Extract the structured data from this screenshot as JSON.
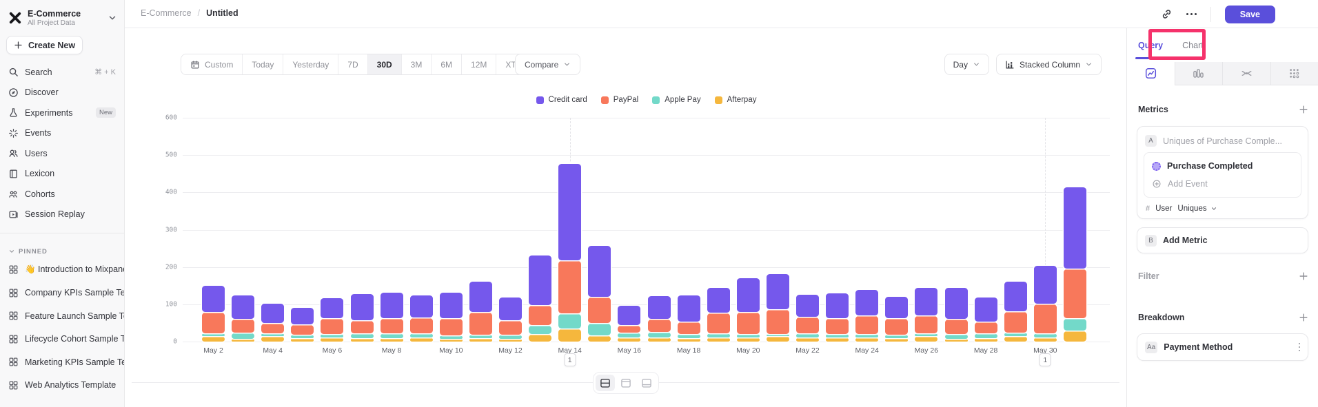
{
  "colors": {
    "accent": "#5a4fdb",
    "highlight_pink": "#f5326b"
  },
  "sidebar": {
    "project": {
      "name": "E-Commerce",
      "subtitle": "All Project Data"
    },
    "create_new_label": "Create New",
    "nav": [
      {
        "icon": "search",
        "label": "Search",
        "shortcut": "⌘ + K"
      },
      {
        "icon": "discover",
        "label": "Discover"
      },
      {
        "icon": "experiments",
        "label": "Experiments",
        "badge": "New"
      },
      {
        "icon": "events",
        "label": "Events"
      },
      {
        "icon": "users",
        "label": "Users"
      },
      {
        "icon": "lexicon",
        "label": "Lexicon"
      },
      {
        "icon": "cohorts",
        "label": "Cohorts"
      },
      {
        "icon": "session-replay",
        "label": "Session Replay"
      }
    ],
    "pinned_header": "PINNED",
    "pinned": [
      "👋 Introduction to Mixpanel Bo",
      "Company KPIs Sample Templat",
      "Feature Launch Sample Templa",
      "Lifecycle Cohort Sample Temp",
      "Marketing KPIs Sample Templat",
      "Web Analytics Template"
    ]
  },
  "header": {
    "breadcrumb": [
      "E-Commerce",
      "Untitled"
    ],
    "separator": "/",
    "save_label": "Save"
  },
  "toolbar": {
    "ranges": [
      "Custom",
      "Today",
      "Yesterday",
      "7D",
      "30D",
      "3M",
      "6M",
      "12M",
      "XTD"
    ],
    "active_range": "30D",
    "compare_label": "Compare",
    "granularity_label": "Day",
    "chart_type_label": "Stacked Column"
  },
  "panel": {
    "tabs": [
      "Query",
      "Chart"
    ],
    "active_tab": "Query",
    "view_icons": [
      "insights",
      "funnels",
      "flows",
      "retention"
    ],
    "active_view": "insights",
    "metrics_title": "Metrics",
    "metric_a": {
      "letter": "A",
      "summary": "Uniques of Purchase Comple...",
      "event": "Purchase Completed",
      "add_event_label": "Add Event",
      "measure_prefix": "#",
      "measure_entity": "User",
      "measure": "Uniques"
    },
    "metric_b": {
      "letter": "B",
      "label": "Add Metric"
    },
    "filter_title": "Filter",
    "breakdown_title": "Breakdown",
    "breakdown_item": {
      "chip": "Aa",
      "label": "Payment Method"
    }
  },
  "chart_data": {
    "type": "bar",
    "stacked": true,
    "title": "",
    "xlabel": "",
    "ylabel": "",
    "ylim": [
      0,
      600
    ],
    "yticks": [
      0,
      100,
      200,
      300,
      400,
      500,
      600
    ],
    "grid": true,
    "legend_position": "top",
    "x_label_every": 2,
    "categories": [
      "May 2",
      "May 3",
      "May 4",
      "May 5",
      "May 6",
      "May 7",
      "May 8",
      "May 9",
      "May 10",
      "May 11",
      "May 12",
      "May 13",
      "May 14",
      "May 15",
      "May 16",
      "May 17",
      "May 18",
      "May 19",
      "May 20",
      "May 21",
      "May 22",
      "May 23",
      "May 24",
      "May 25",
      "May 26",
      "May 27",
      "May 28",
      "May 29",
      "May 30",
      "May 31"
    ],
    "series": [
      {
        "name": "Credit card",
        "color": "#7558ec",
        "values": [
          72,
          64,
          53,
          45,
          55,
          72,
          70,
          61,
          70,
          82,
          62,
          135,
          261,
          138,
          54,
          62,
          72,
          68,
          92,
          96,
          61,
          68,
          70,
          58,
          76,
          85,
          67,
          81,
          103,
          221
        ]
      },
      {
        "name": "PayPal",
        "color": "#f8785b",
        "values": [
          57,
          37,
          28,
          28,
          43,
          36,
          40,
          42,
          46,
          62,
          40,
          53,
          142,
          70,
          20,
          36,
          33,
          55,
          59,
          66,
          44,
          43,
          50,
          45,
          48,
          41,
          31,
          57,
          80,
          132
        ]
      },
      {
        "name": "Apple Pay",
        "color": "#73d9c9",
        "values": [
          8,
          17,
          8,
          10,
          8,
          12,
          13,
          10,
          10,
          8,
          10,
          24,
          40,
          33,
          12,
          13,
          10,
          10,
          8,
          6,
          10,
          8,
          8,
          8,
          8,
          12,
          12,
          10,
          10,
          33
        ]
      },
      {
        "name": "Afterpay",
        "color": "#f5b73d",
        "values": [
          15,
          7,
          14,
          9,
          12,
          10,
          10,
          12,
          7,
          10,
          8,
          20,
          35,
          17,
          12,
          12,
          10,
          12,
          12,
          14,
          12,
          12,
          12,
          10,
          14,
          8,
          10,
          14,
          12,
          30
        ]
      }
    ],
    "stack_order_bottom_to_top": [
      "Afterpay",
      "Apple Pay",
      "PayPal",
      "Credit card"
    ],
    "annotations": [
      {
        "category": "May 14",
        "label": "1"
      },
      {
        "category": "May 30",
        "label": "1"
      }
    ]
  }
}
